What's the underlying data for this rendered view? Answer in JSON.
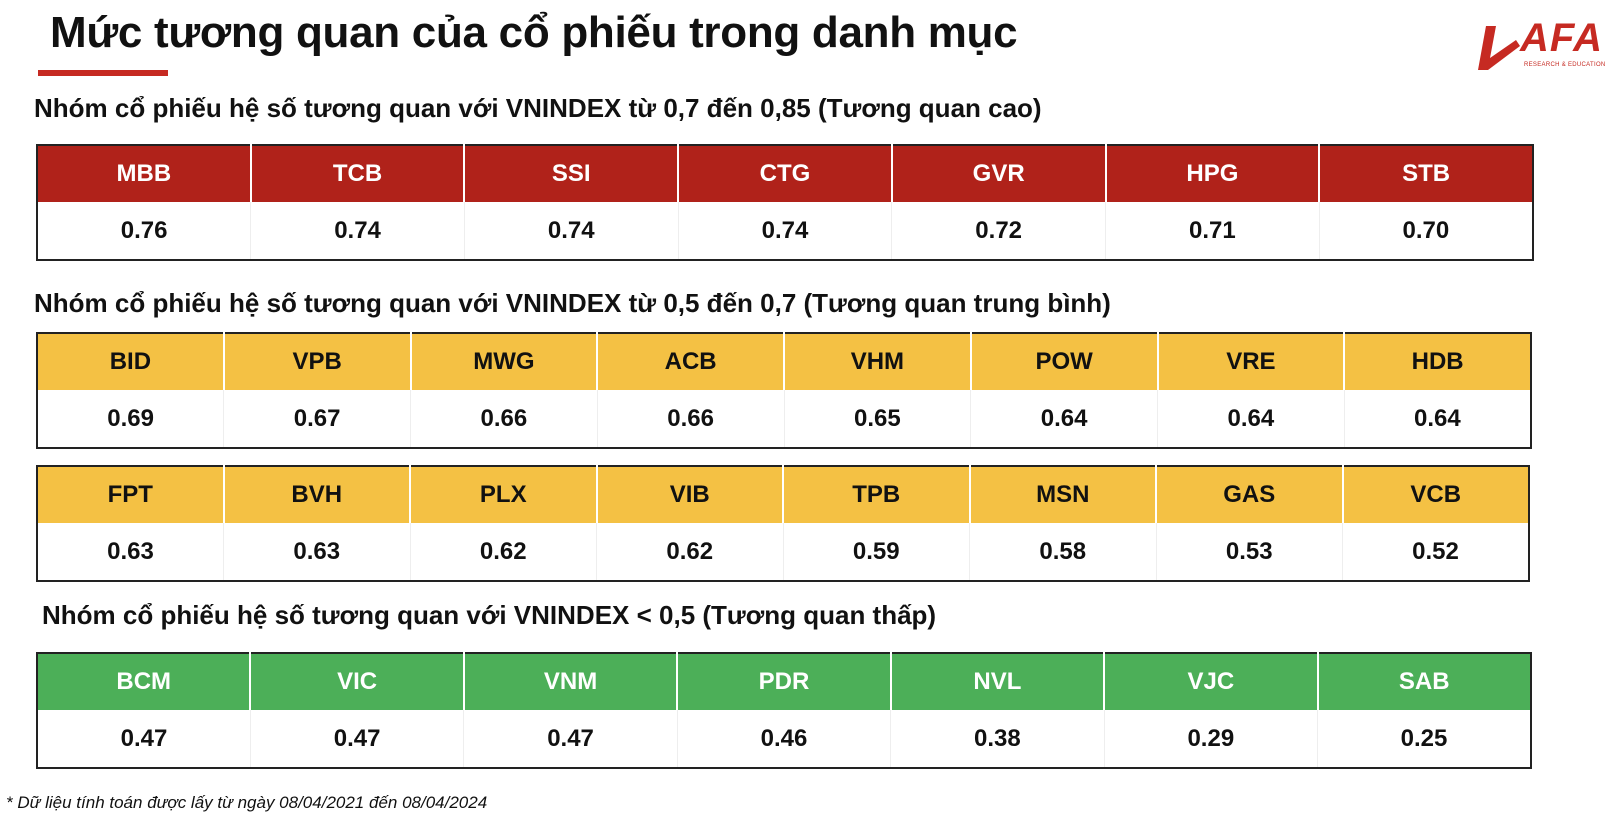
{
  "title": "Mức tương quan của cổ phiếu trong danh mục",
  "logo": {
    "brand": "AFA",
    "tagline": "RESEARCH & EDUCATION"
  },
  "colors": {
    "high": "#b0221a",
    "medium": "#f4c144",
    "low": "#4caf58",
    "accent": "#c62a22"
  },
  "groups": {
    "high": {
      "title": "Nhóm cổ phiếu hệ số tương quan với VNINDEX từ 0,7 đến 0,85 (Tương quan cao)",
      "tickers": [
        "MBB",
        "TCB",
        "SSI",
        "CTG",
        "GVR",
        "HPG",
        "STB"
      ],
      "values": [
        "0.76",
        "0.74",
        "0.74",
        "0.74",
        "0.72",
        "0.71",
        "0.70"
      ]
    },
    "medium": {
      "title": "Nhóm cổ phiếu hệ số tương quan với VNINDEX từ 0,5 đến 0,7 (Tương quan trung bình)",
      "row1": {
        "tickers": [
          "BID",
          "VPB",
          "MWG",
          "ACB",
          "VHM",
          "POW",
          "VRE",
          "HDB"
        ],
        "values": [
          "0.69",
          "0.67",
          "0.66",
          "0.66",
          "0.65",
          "0.64",
          "0.64",
          "0.64"
        ]
      },
      "row2": {
        "tickers": [
          "FPT",
          "BVH",
          "PLX",
          "VIB",
          "TPB",
          "MSN",
          "GAS",
          "VCB"
        ],
        "values": [
          "0.63",
          "0.63",
          "0.62",
          "0.62",
          "0.59",
          "0.58",
          "0.53",
          "0.52"
        ]
      }
    },
    "low": {
      "title": "Nhóm cổ phiếu hệ số tương quan với VNINDEX < 0,5 (Tương quan thấp)",
      "tickers": [
        "BCM",
        "VIC",
        "VNM",
        "PDR",
        "NVL",
        "VJC",
        "SAB"
      ],
      "values": [
        "0.47",
        "0.47",
        "0.47",
        "0.46",
        "0.38",
        "0.29",
        "0.25"
      ]
    }
  },
  "footnote": "* Dữ liệu tính toán được lấy từ ngày 08/04/2021 đến 08/04/2024"
}
